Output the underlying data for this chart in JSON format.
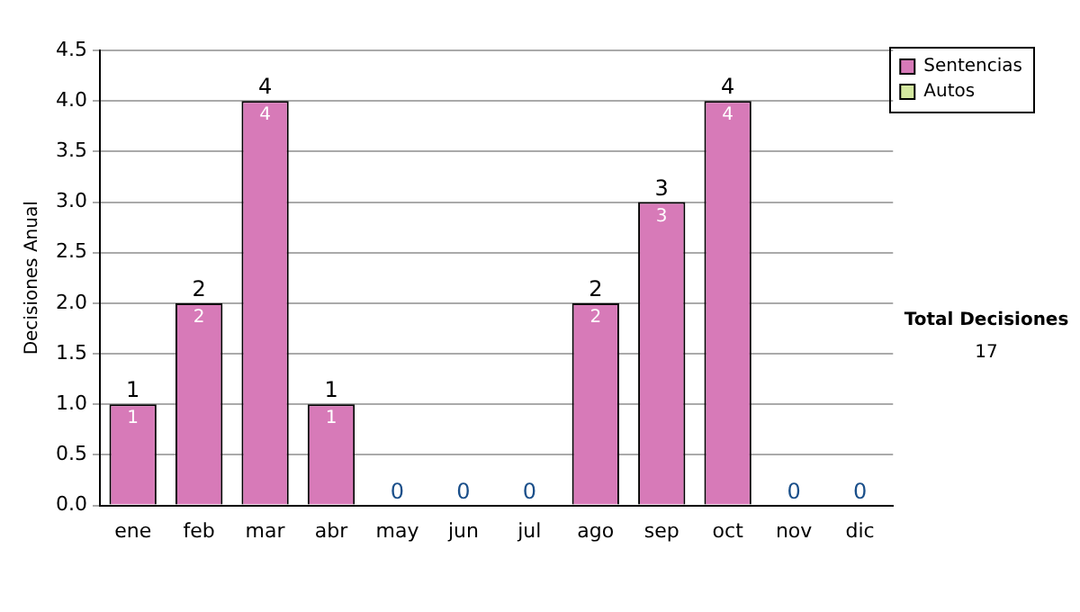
{
  "chart_data": {
    "type": "bar",
    "ylabel": "Decisiones Anual",
    "categories": [
      "ene",
      "feb",
      "mar",
      "abr",
      "may",
      "jun",
      "jul",
      "ago",
      "sep",
      "oct",
      "nov",
      "dic"
    ],
    "series": [
      {
        "name": "Sentencias",
        "color": "#d77ab8",
        "values": [
          1,
          2,
          4,
          1,
          0,
          0,
          0,
          2,
          3,
          4,
          0,
          0
        ],
        "value_labels": [
          "1",
          "2",
          "4",
          "1",
          null,
          null,
          null,
          "2",
          "3",
          "4",
          null,
          null
        ]
      },
      {
        "name": "Autos",
        "color": "#d4e8a0",
        "values": [
          0,
          0,
          0,
          0,
          0,
          0,
          0,
          0,
          0,
          0,
          0,
          0
        ]
      }
    ],
    "stacked": true,
    "totals": [
      "1",
      "2",
      "4",
      "1",
      "0",
      "0",
      "0",
      "2",
      "3",
      "4",
      "0",
      "0"
    ],
    "ylim": [
      0,
      4.5
    ],
    "yticks": [
      {
        "value": 0,
        "label": "0.0"
      },
      {
        "value": 0.5,
        "label": "0.5"
      },
      {
        "value": 1,
        "label": "1.0"
      },
      {
        "value": 1.5,
        "label": "1.5"
      },
      {
        "value": 2,
        "label": "2.0"
      },
      {
        "value": 2.5,
        "label": "2.5"
      },
      {
        "value": 3,
        "label": "3.0"
      },
      {
        "value": 3.5,
        "label": "3.5"
      },
      {
        "value": 4,
        "label": "4.0"
      },
      {
        "value": 4.5,
        "label": "4.5"
      }
    ],
    "grid": "y",
    "legend": "right",
    "annotations": [
      "Total Decisiones",
      "17"
    ]
  }
}
